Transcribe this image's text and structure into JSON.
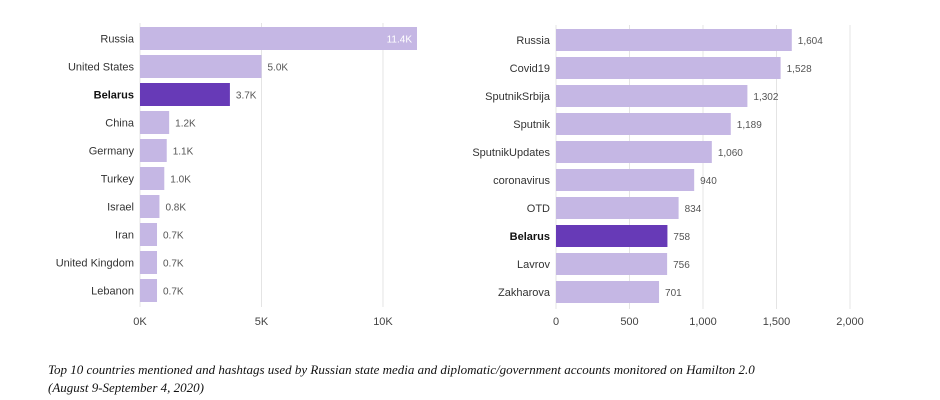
{
  "chart_data": [
    {
      "type": "bar",
      "orientation": "horizontal",
      "categories": [
        "Russia",
        "United States",
        "Belarus",
        "China",
        "Germany",
        "Turkey",
        "Israel",
        "Iran",
        "United Kingdom",
        "Lebanon"
      ],
      "values": [
        11400,
        5000,
        3700,
        1200,
        1100,
        1000,
        800,
        700,
        700,
        700
      ],
      "value_labels": [
        "11.4K",
        "5.0K",
        "3.7K",
        "1.2K",
        "1.1K",
        "1.0K",
        "0.8K",
        "0.7K",
        "0.7K",
        "0.7K"
      ],
      "highlight": "Belarus",
      "xlim": [
        0,
        11400
      ],
      "xticks": [
        0,
        5000,
        10000
      ],
      "xtick_labels": [
        "0K",
        "5K",
        "10K"
      ],
      "grid": true
    },
    {
      "type": "bar",
      "orientation": "horizontal",
      "categories": [
        "Russia",
        "Covid19",
        "SputnikSrbija",
        "Sputnik",
        "SputnikUpdates",
        "coronavirus",
        "OTD",
        "Belarus",
        "Lavrov",
        "Zakharova"
      ],
      "values": [
        1604,
        1528,
        1302,
        1189,
        1060,
        940,
        834,
        758,
        756,
        701
      ],
      "value_labels": [
        "1,604",
        "1,528",
        "1,302",
        "1,189",
        "1,060",
        "940",
        "834",
        "758",
        "756",
        "701"
      ],
      "highlight": "Belarus",
      "xlim": [
        0,
        2000
      ],
      "xticks": [
        0,
        500,
        1000,
        1500,
        2000
      ],
      "xtick_labels": [
        "0",
        "500",
        "1,000",
        "1,500",
        "2,000"
      ],
      "grid": true
    }
  ],
  "colors": {
    "bar": "#c5b7e4",
    "bar_highlight": "#673ab7"
  },
  "caption": {
    "line1": "Top 10 countries mentioned and hashtags used by Russian state media and diplomatic/government accounts monitored on Hamilton 2.0",
    "line2": "(August 9-September 4, 2020)"
  }
}
